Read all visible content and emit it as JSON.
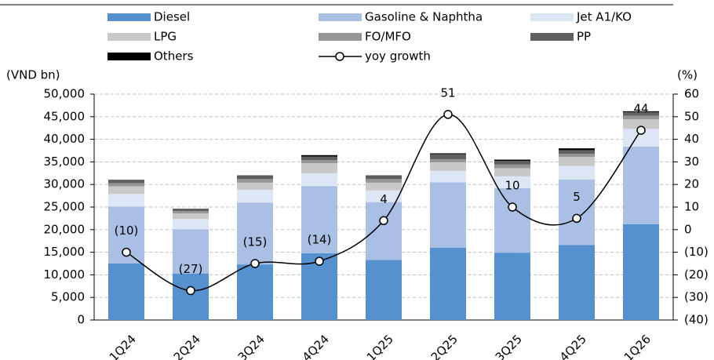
{
  "chart_data": {
    "type": "bar",
    "y_label": "(VND bn)",
    "y2_label": "(%)",
    "categories": [
      "1Q24",
      "2Q24",
      "3Q24",
      "4Q24",
      "1Q25",
      "2Q25",
      "3Q25",
      "4Q25",
      "1Q26"
    ],
    "stacked": true,
    "grid": true,
    "negative_color": "#ff0000",
    "series": [
      {
        "name": "Diesel",
        "color": "#5590cf",
        "values": [
          12500,
          10300,
          12300,
          14800,
          13300,
          16000,
          14900,
          16600,
          21200
        ]
      },
      {
        "name": "Gasoline & Naphtha",
        "color": "#a9c0e4",
        "values": [
          12600,
          9800,
          13700,
          14800,
          12800,
          14500,
          14300,
          14500,
          17200
        ]
      },
      {
        "name": "Jet A1/KO",
        "color": "#dde6f5",
        "values": [
          2800,
          2300,
          2800,
          2900,
          2600,
          2500,
          2600,
          3000,
          3900
        ]
      },
      {
        "name": "LPG",
        "color": "#c8c8c8",
        "values": [
          1700,
          1200,
          1600,
          2200,
          1700,
          1900,
          1800,
          2000,
          2100
        ]
      },
      {
        "name": "FO/MFO",
        "color": "#969696",
        "values": [
          700,
          500,
          800,
          700,
          800,
          700,
          800,
          700,
          800
        ]
      },
      {
        "name": "PP",
        "color": "#606060",
        "values": [
          600,
          400,
          700,
          800,
          700,
          1100,
          800,
          800,
          800
        ]
      },
      {
        "name": "Others",
        "color": "#000000",
        "values": [
          100,
          100,
          100,
          300,
          100,
          200,
          300,
          400,
          200
        ]
      },
      {
        "name": "yoy growth",
        "color": "#000000",
        "type": "line",
        "axis": "y2",
        "values": [
          -10,
          -27,
          -15,
          -14,
          4,
          51,
          10,
          5,
          44
        ],
        "value_labels": [
          "(10)",
          "(27)",
          "(15)",
          "(14)",
          "4",
          "51",
          "10",
          "5",
          "44"
        ]
      }
    ],
    "ylim": [
      0,
      50000
    ],
    "yticks": [
      0,
      {
        "value": 5000,
        "label": "5,000"
      },
      {
        "value": 10000,
        "label": "10,000"
      },
      {
        "value": 15000,
        "label": "15,000"
      },
      {
        "value": 20000,
        "label": "20,000"
      },
      {
        "value": 25000,
        "label": "25,000"
      },
      {
        "value": 30000,
        "label": "30,000"
      },
      {
        "value": 35000,
        "label": "35,000"
      },
      {
        "value": 40000,
        "label": "40,000"
      },
      {
        "value": 45000,
        "label": "45,000"
      },
      {
        "value": 50000,
        "label": "50,000"
      }
    ],
    "y2lim": [
      -40,
      60
    ],
    "y2ticks": [
      {
        "value": -40,
        "label": "(40)"
      },
      {
        "value": -30,
        "label": "(30)"
      },
      {
        "value": -20,
        "label": "(20)"
      },
      {
        "value": -10,
        "label": "(10)"
      },
      0,
      10,
      20,
      30,
      40,
      50,
      60
    ]
  }
}
